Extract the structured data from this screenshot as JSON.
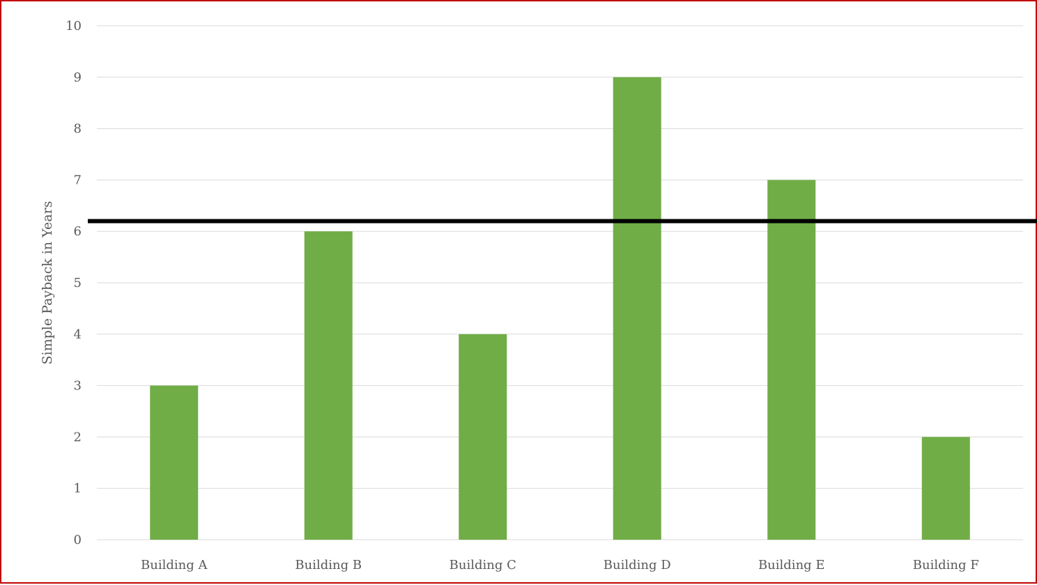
{
  "chart_data": {
    "type": "bar",
    "title": "",
    "xlabel": "",
    "ylabel": "Simple Payback in Years",
    "categories": [
      "Building A",
      "Building B",
      "Building C",
      "Building D",
      "Building E",
      "Building F"
    ],
    "series": [
      {
        "values": [
          3,
          6,
          4,
          9,
          7,
          2
        ]
      }
    ],
    "ylim": [
      0,
      10
    ],
    "yticks": [
      "0",
      "1",
      "2",
      "3",
      "4",
      "5",
      "6",
      "7",
      "8",
      "9",
      "10"
    ],
    "grid": true,
    "legend": "none",
    "reference_line": {
      "y": 6.2,
      "color": "#000000"
    },
    "colors": {
      "bar": "#70ad47",
      "grid": "#d9d9d9",
      "border": "#c00000",
      "text": "#595959"
    }
  }
}
